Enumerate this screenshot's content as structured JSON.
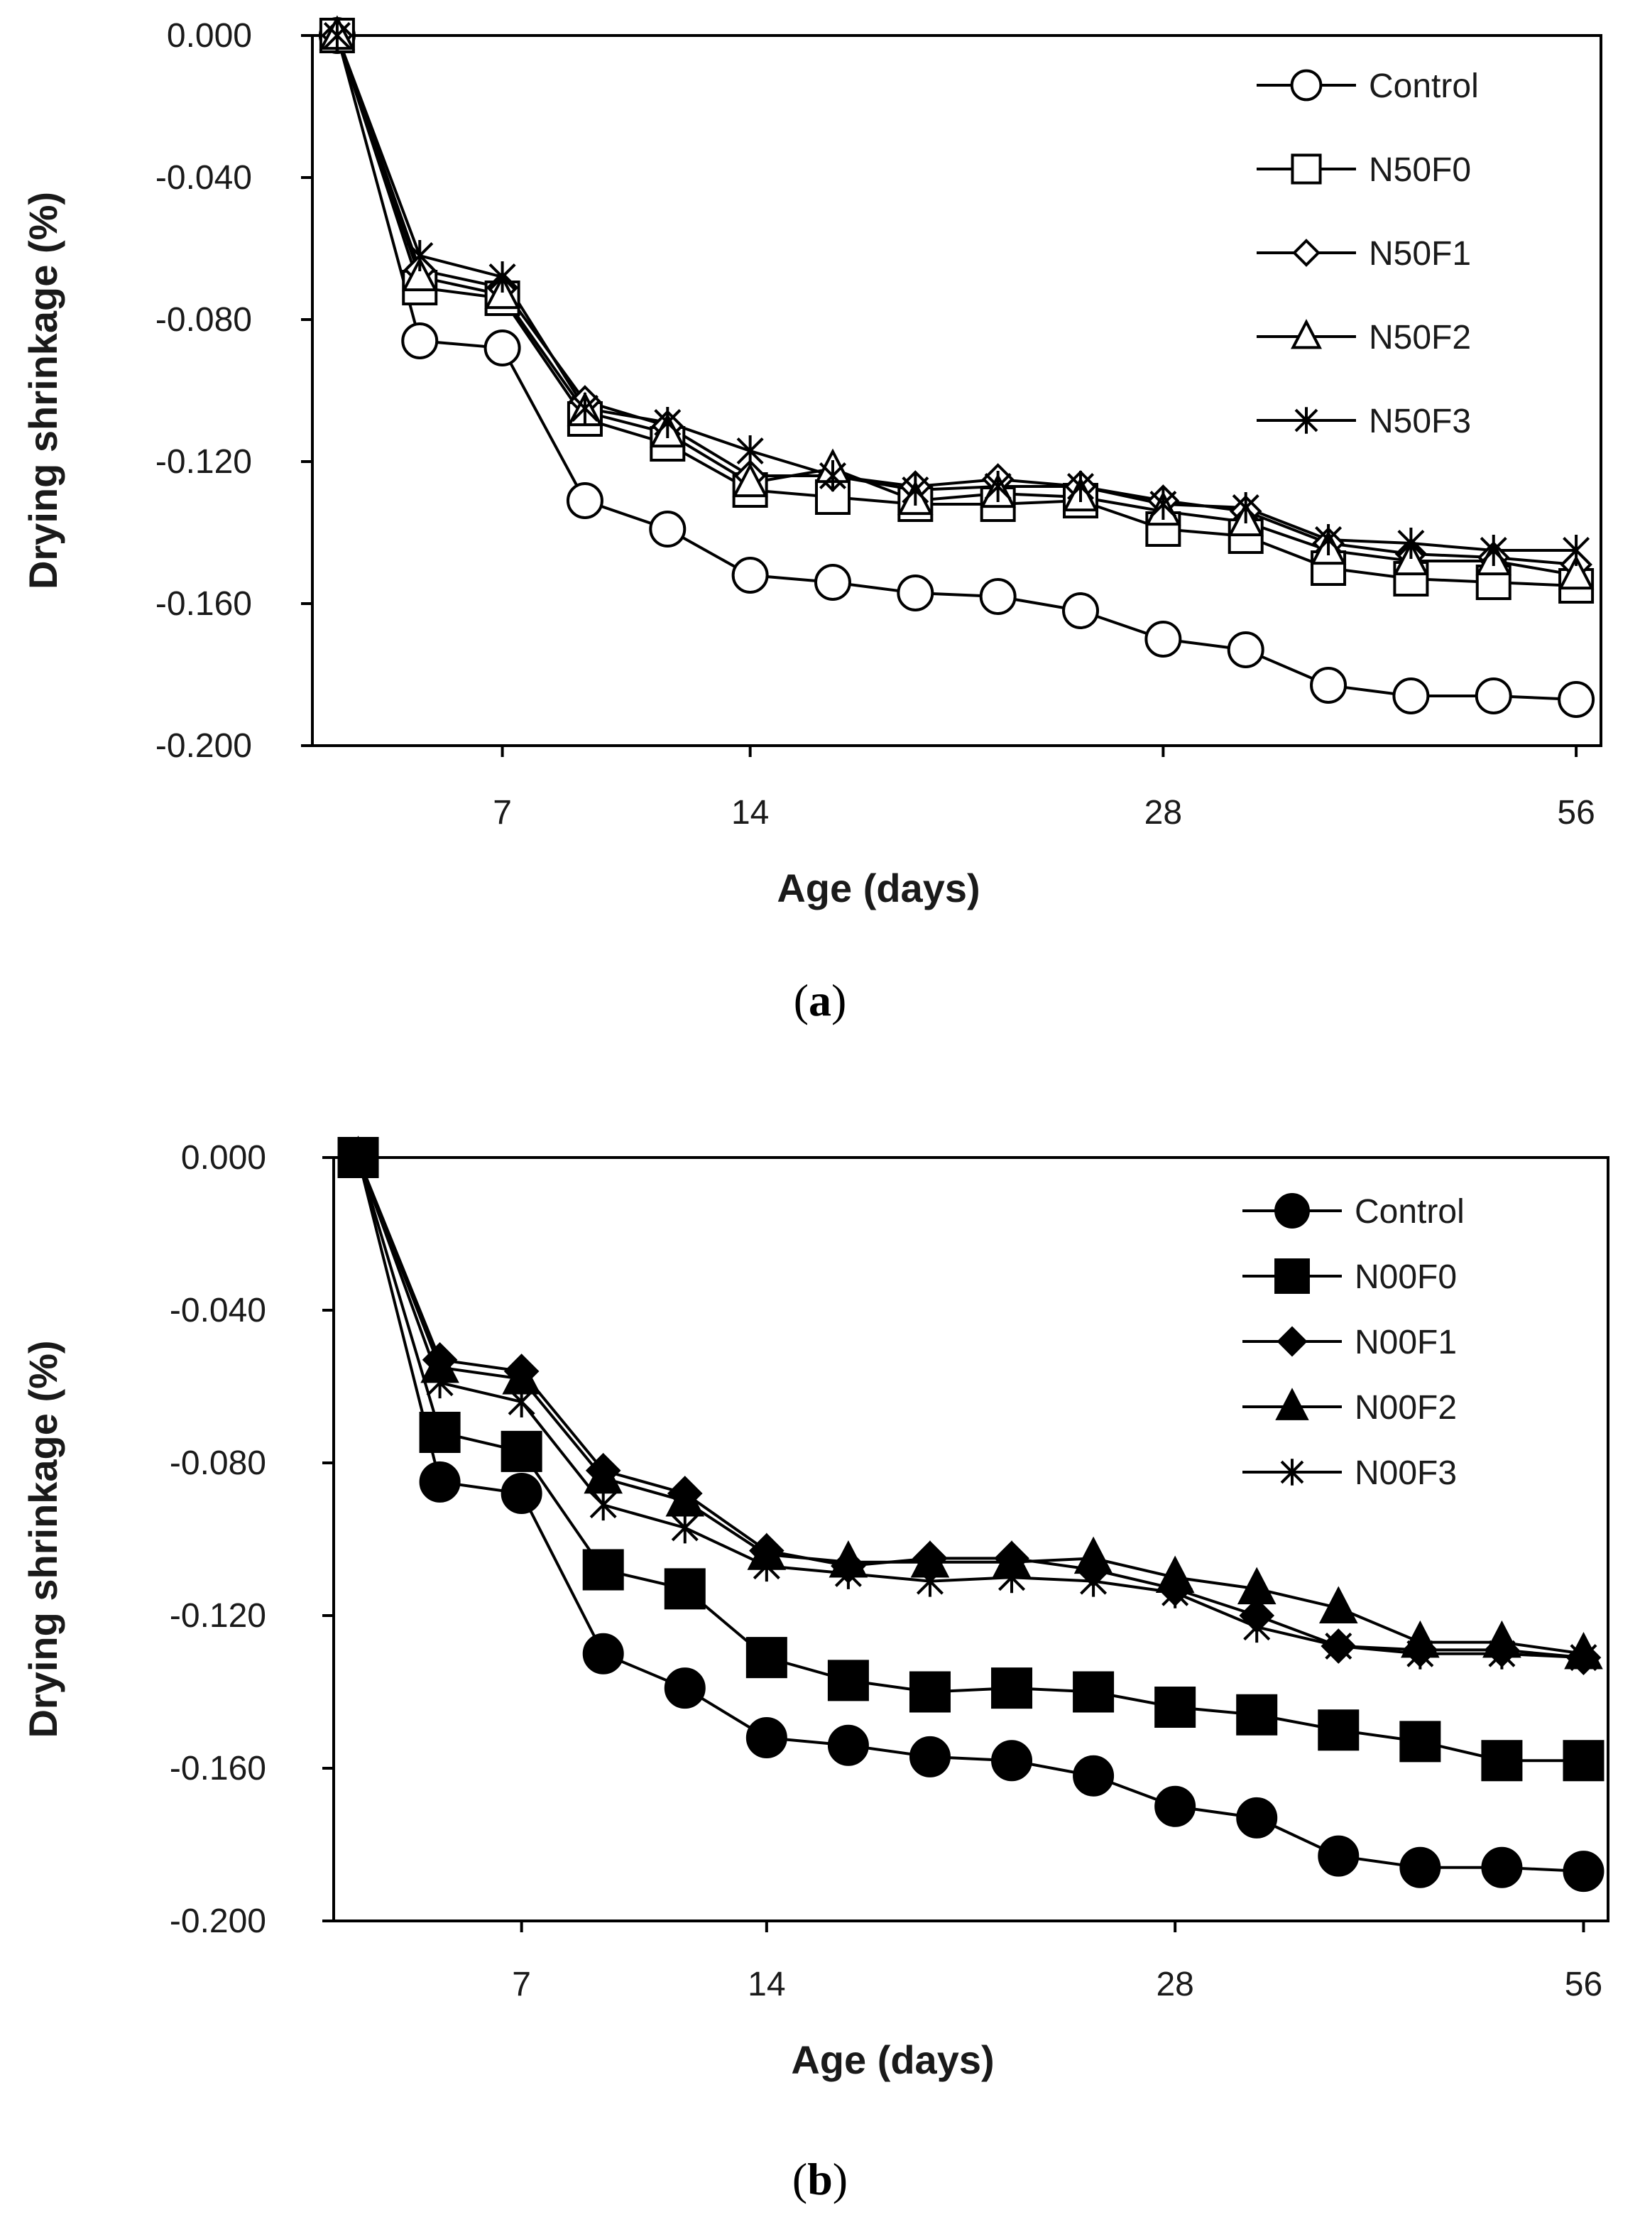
{
  "chart_data": [
    {
      "type": "line",
      "caption_letter": "a",
      "xlabel": "Age (days)",
      "ylabel": "Drying shrinkage (%)",
      "ylim": [
        -0.2,
        0.0
      ],
      "yticks": [
        "0.000",
        "-0.040",
        "-0.080",
        "-0.120",
        "-0.160",
        "-0.200"
      ],
      "xticks": [
        {
          "label": "7",
          "pos": 2
        },
        {
          "label": "14",
          "pos": 5
        },
        {
          "label": "28",
          "pos": 10
        },
        {
          "label": "56",
          "pos": 15
        }
      ],
      "x_index_range": [
        -0.3,
        15.3
      ],
      "legend_position": "top-right",
      "series": [
        {
          "name": "Control",
          "marker": "circle",
          "filled": false,
          "size": 24,
          "values": [
            0,
            -0.086,
            -0.088,
            -0.131,
            -0.139,
            -0.152,
            -0.154,
            -0.157,
            -0.158,
            -0.162,
            -0.17,
            -0.173,
            -0.183,
            -0.186,
            -0.186,
            -0.187
          ]
        },
        {
          "name": "N50F0",
          "marker": "square",
          "filled": false,
          "size": 23,
          "values": [
            0,
            -0.071,
            -0.074,
            -0.108,
            -0.115,
            -0.128,
            -0.13,
            -0.132,
            -0.132,
            -0.131,
            -0.139,
            -0.141,
            -0.15,
            -0.153,
            -0.154,
            -0.155
          ]
        },
        {
          "name": "N50F1",
          "marker": "diamond",
          "filled": false,
          "size": 20,
          "values": [
            0,
            -0.066,
            -0.071,
            -0.103,
            -0.11,
            -0.124,
            -0.124,
            -0.127,
            -0.125,
            -0.127,
            -0.131,
            -0.134,
            -0.143,
            -0.146,
            -0.147,
            -0.149
          ]
        },
        {
          "name": "N50F2",
          "marker": "triangle",
          "filled": false,
          "size": 22,
          "values": [
            0,
            -0.068,
            -0.073,
            -0.106,
            -0.112,
            -0.126,
            -0.122,
            -0.131,
            -0.129,
            -0.13,
            -0.134,
            -0.137,
            -0.145,
            -0.148,
            -0.148,
            -0.152
          ]
        },
        {
          "name": "N50F3",
          "marker": "asterisk",
          "filled": false,
          "size": 22,
          "values": [
            0,
            -0.062,
            -0.068,
            -0.105,
            -0.109,
            -0.117,
            -0.124,
            -0.128,
            -0.127,
            -0.127,
            -0.132,
            -0.133,
            -0.142,
            -0.143,
            -0.145,
            -0.145
          ]
        }
      ]
    },
    {
      "type": "line",
      "caption_letter": "b",
      "xlabel": "Age (days)",
      "ylabel": "Drying shrinkage (%)",
      "ylim": [
        -0.2,
        0.0
      ],
      "yticks": [
        "0.000",
        "-0.040",
        "-0.080",
        "-0.120",
        "-0.160",
        "-0.200"
      ],
      "xticks": [
        {
          "label": "7",
          "pos": 2
        },
        {
          "label": "14",
          "pos": 5
        },
        {
          "label": "28",
          "pos": 10
        },
        {
          "label": "56",
          "pos": 15
        }
      ],
      "x_index_range": [
        -0.3,
        15.3
      ],
      "legend_position": "top-right",
      "series": [
        {
          "name": "Control",
          "marker": "circle",
          "filled": true,
          "size": 27,
          "values": [
            0,
            -0.085,
            -0.088,
            -0.13,
            -0.139,
            -0.152,
            -0.154,
            -0.157,
            -0.158,
            -0.162,
            -0.17,
            -0.173,
            -0.183,
            -0.186,
            -0.186,
            -0.187
          ]
        },
        {
          "name": "N00F0",
          "marker": "square",
          "filled": true,
          "size": 27,
          "values": [
            0,
            -0.072,
            -0.077,
            -0.108,
            -0.113,
            -0.131,
            -0.137,
            -0.14,
            -0.139,
            -0.14,
            -0.144,
            -0.146,
            -0.15,
            -0.153,
            -0.158,
            -0.158
          ]
        },
        {
          "name": "N00F1",
          "marker": "diamond",
          "filled": true,
          "size": 22,
          "values": [
            0,
            -0.053,
            -0.056,
            -0.082,
            -0.088,
            -0.103,
            -0.107,
            -0.105,
            -0.105,
            -0.108,
            -0.113,
            -0.12,
            -0.128,
            -0.129,
            -0.129,
            -0.131
          ]
        },
        {
          "name": "N00F2",
          "marker": "triangle",
          "filled": true,
          "size": 24,
          "values": [
            0,
            -0.055,
            -0.058,
            -0.084,
            -0.09,
            -0.104,
            -0.106,
            -0.106,
            -0.106,
            -0.105,
            -0.11,
            -0.113,
            -0.118,
            -0.127,
            -0.127,
            -0.13
          ]
        },
        {
          "name": "N00F3",
          "marker": "asterisk",
          "filled": false,
          "size": 22,
          "values": [
            0,
            -0.059,
            -0.064,
            -0.091,
            -0.097,
            -0.107,
            -0.109,
            -0.111,
            -0.11,
            -0.111,
            -0.114,
            -0.123,
            -0.128,
            -0.13,
            -0.13,
            -0.131
          ]
        }
      ]
    }
  ]
}
